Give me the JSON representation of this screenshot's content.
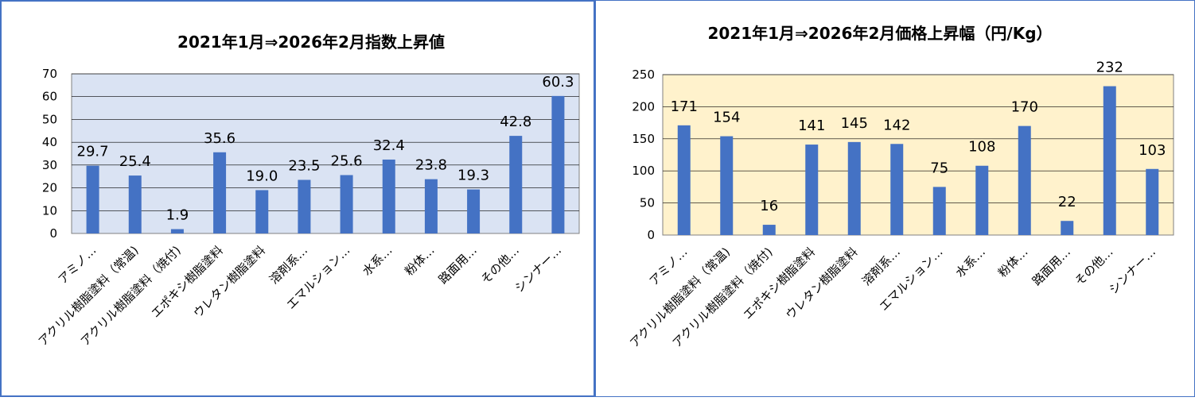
{
  "chart_data": [
    {
      "type": "bar",
      "title": "2021年1月⇒2026年2月指数上昇値",
      "categories": [
        "アミノ…",
        "アクリル樹脂塗料（常温)",
        "アクリル樹脂塗料（焼付)",
        "エポキシ樹脂塗料",
        "ウレタン樹脂塗料",
        "溶剤系…",
        "エマルション…",
        "水系…",
        "粉体…",
        "路面用…",
        "その他…",
        "シンナー…"
      ],
      "values": [
        29.7,
        25.4,
        1.9,
        35.6,
        19.0,
        23.5,
        25.6,
        32.4,
        23.8,
        19.3,
        42.8,
        60.3
      ],
      "value_labels": [
        "29.7",
        "25.4",
        "1.9",
        "35.6",
        "19.0",
        "23.5",
        "25.6",
        "32.4",
        "23.8",
        "19.3",
        "42.8",
        "60.3"
      ],
      "yticks": [
        "0",
        "10",
        "20",
        "30",
        "40",
        "50",
        "60",
        "70"
      ],
      "ylim": [
        0,
        70
      ],
      "plot_bg": "#dae3f3",
      "bar_color": "#4472c4",
      "grid": true
    },
    {
      "type": "bar",
      "title": "2021年1月⇒2026年2月価格上昇幅（円/Kg）",
      "categories": [
        "アミノ…",
        "アクリル樹脂塗料（常温)",
        "アクリル樹脂塗料（焼付)",
        "エポキシ樹脂塗料",
        "ウレタン樹脂塗料",
        "溶剤系…",
        "エマルション…",
        "水系…",
        "粉体…",
        "路面用…",
        "その他…",
        "シンナー…"
      ],
      "values": [
        171,
        154,
        16,
        141,
        145,
        142,
        75,
        108,
        170,
        22,
        232,
        103
      ],
      "value_labels": [
        "171",
        "154",
        "16",
        "141",
        "145",
        "142",
        "75",
        "108",
        "170",
        "22",
        "232",
        "103"
      ],
      "yticks": [
        "0",
        "50",
        "100",
        "150",
        "200",
        "250"
      ],
      "ylim": [
        0,
        250
      ],
      "plot_bg": "#fff2cc",
      "bar_color": "#4472c4",
      "grid": true
    }
  ]
}
